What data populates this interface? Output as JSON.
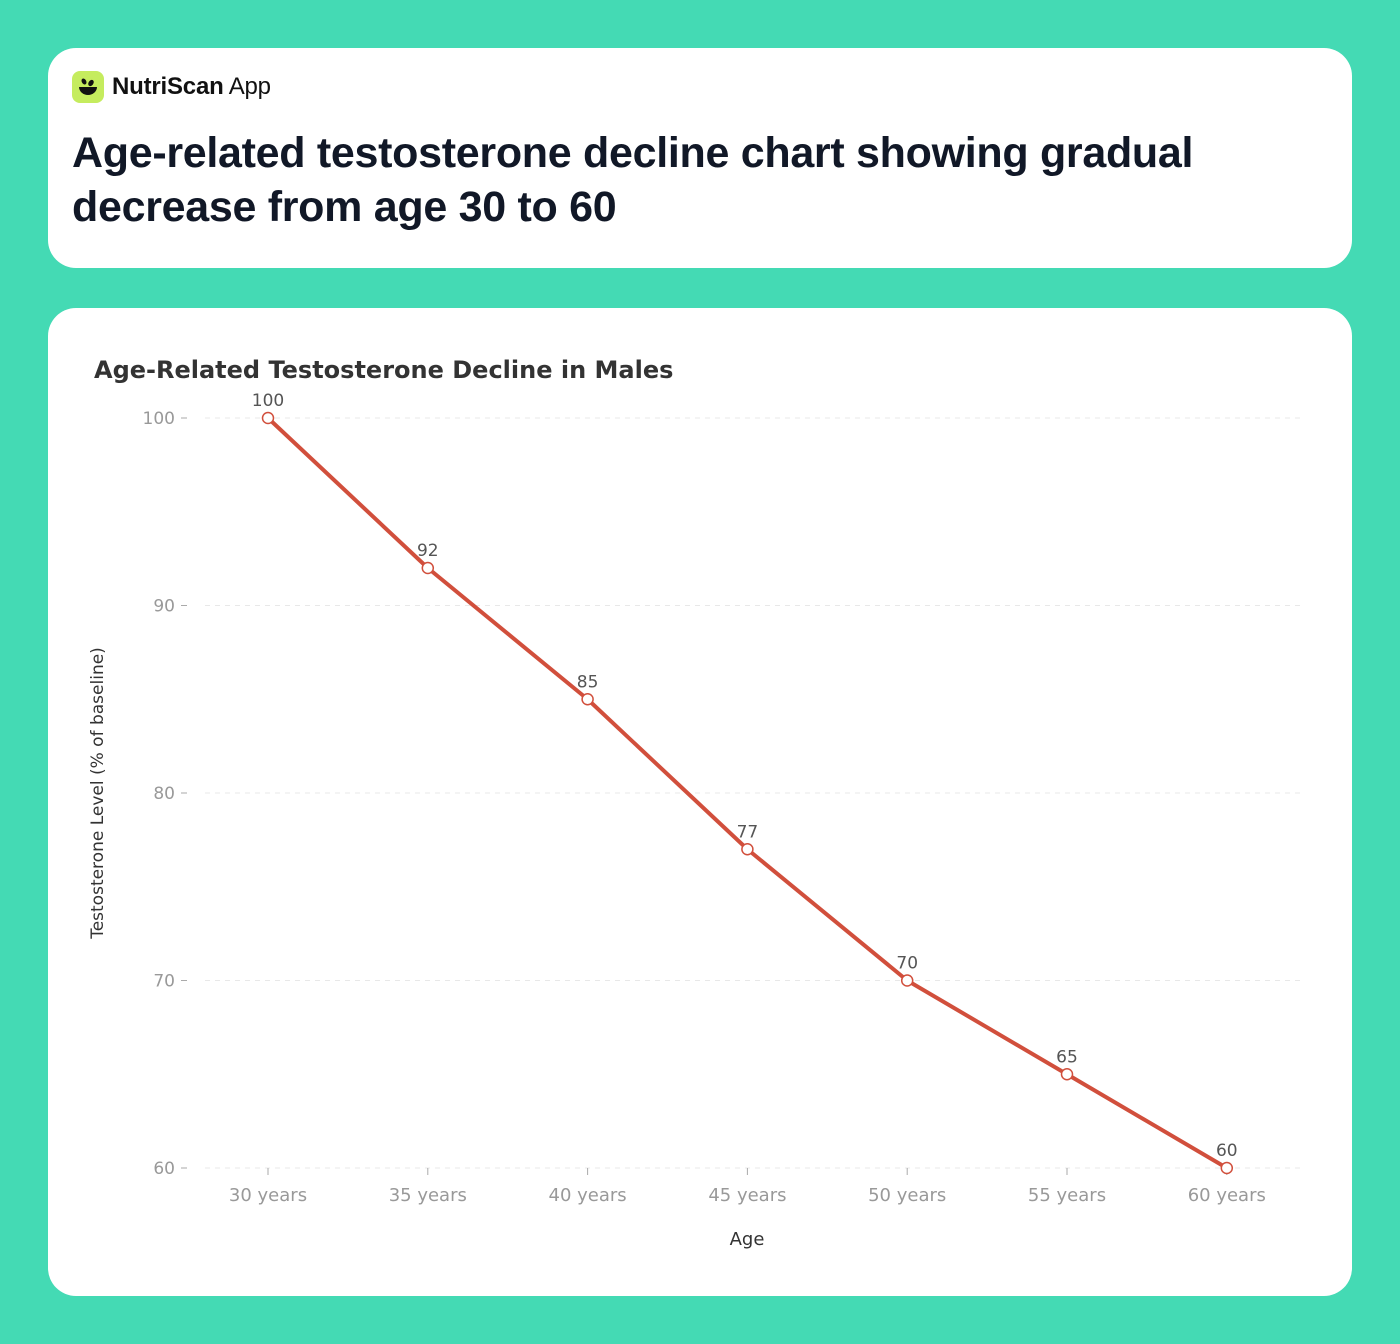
{
  "brand": {
    "name_bold": "NutriScan",
    "name_regular": "App",
    "logo_icon": "bowl-with-leaves-icon",
    "logo_color": "#c5ec5e"
  },
  "header": {
    "title": "Age-related testosterone decline chart showing gradual decrease from age 30 to 60"
  },
  "colors": {
    "background": "#44dab4",
    "line": "#d14f3c",
    "title_text": "#111827"
  },
  "chart_data": {
    "type": "line",
    "title": "Age-Related Testosterone Decline in Males",
    "xlabel": "Age",
    "ylabel": "Testosterone Level (% of baseline)",
    "categories": [
      "30 years",
      "35 years",
      "40 years",
      "45 years",
      "50 years",
      "55 years",
      "60 years"
    ],
    "series": [
      {
        "name": "Testosterone Level",
        "values": [
          100,
          92,
          85,
          77,
          70,
          65,
          60
        ]
      }
    ],
    "data_labels": [
      "100",
      "92",
      "85",
      "77",
      "70",
      "65",
      "60"
    ],
    "yticks": [
      "100",
      "90",
      "80",
      "70",
      "60"
    ],
    "ylim": [
      60,
      100
    ],
    "grid": "horizontal dashed",
    "legend": "none"
  }
}
